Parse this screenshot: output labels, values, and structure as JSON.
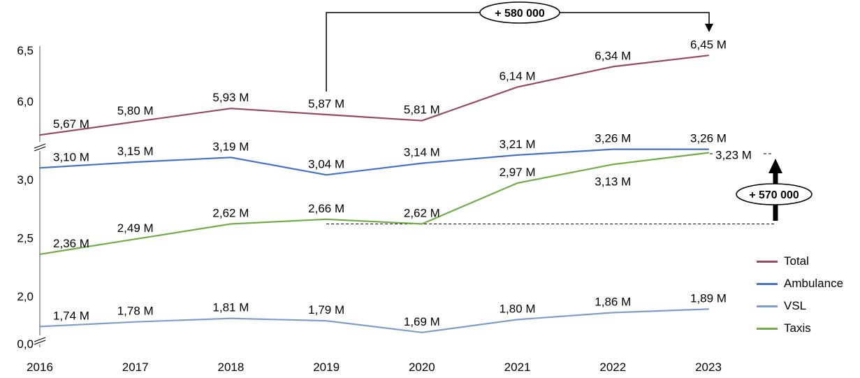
{
  "chart_data": {
    "type": "line",
    "x_labels": [
      "2016",
      "2017",
      "2018",
      "2019",
      "2020",
      "2021",
      "2022",
      "2023"
    ],
    "y_axis": {
      "tick_labels": [
        "6,5",
        "6,0",
        "3,0",
        "2,5",
        "2,0",
        "0,0"
      ],
      "tick_values": [
        6.5,
        6.0,
        3.0,
        2.5,
        2.0,
        0.0
      ],
      "has_axis_breaks": true,
      "break_between": [
        [
          3.3,
          5.6
        ],
        [
          0.1,
          1.6
        ]
      ]
    },
    "series": [
      {
        "name": "Total",
        "color": "#964A5F",
        "values": [
          5.67,
          5.8,
          5.93,
          5.87,
          5.81,
          6.14,
          6.34,
          6.45
        ],
        "point_labels": [
          "5,67 M",
          "5,80 M",
          "5,93 M",
          "5,87 M",
          "5,81 M",
          "6,14 M",
          "6,34 M",
          "6,45 M"
        ]
      },
      {
        "name": "Ambulance",
        "color": "#4472C4",
        "values": [
          3.1,
          3.15,
          3.19,
          3.04,
          3.14,
          3.21,
          3.26,
          3.26
        ],
        "point_labels": [
          "3,10 M",
          "3,15 M",
          "3,19 M",
          "3,04 M",
          "3,14 M",
          "3,21 M",
          "3,26 M",
          "3,26 M"
        ]
      },
      {
        "name": "VSL",
        "color": "#7E9DC8",
        "values": [
          1.74,
          1.78,
          1.81,
          1.79,
          1.69,
          1.8,
          1.86,
          1.89
        ],
        "point_labels": [
          "1,74 M",
          "1,78 M",
          "1,81 M",
          "1,79 M",
          "1,69 M",
          "1,80 M",
          "1,86 M",
          "1,89 M"
        ]
      },
      {
        "name": "Taxis",
        "color": "#70AD47",
        "values": [
          2.36,
          2.49,
          2.62,
          2.66,
          2.62,
          2.97,
          3.13,
          3.23
        ],
        "point_labels": [
          "2,36 M",
          "2,49 M",
          "2,62 M",
          "2,66 M",
          "2,62 M",
          "2,97 M",
          "3,13 M",
          "3,23 M"
        ]
      }
    ],
    "annotations": [
      {
        "name": "total-growth-callout",
        "text": "+ 580 000",
        "from_year": "2019",
        "to_year": "2023"
      },
      {
        "name": "taxis-growth-callout",
        "text": "+ 570 000"
      }
    ],
    "legend": {
      "position": "right"
    }
  }
}
